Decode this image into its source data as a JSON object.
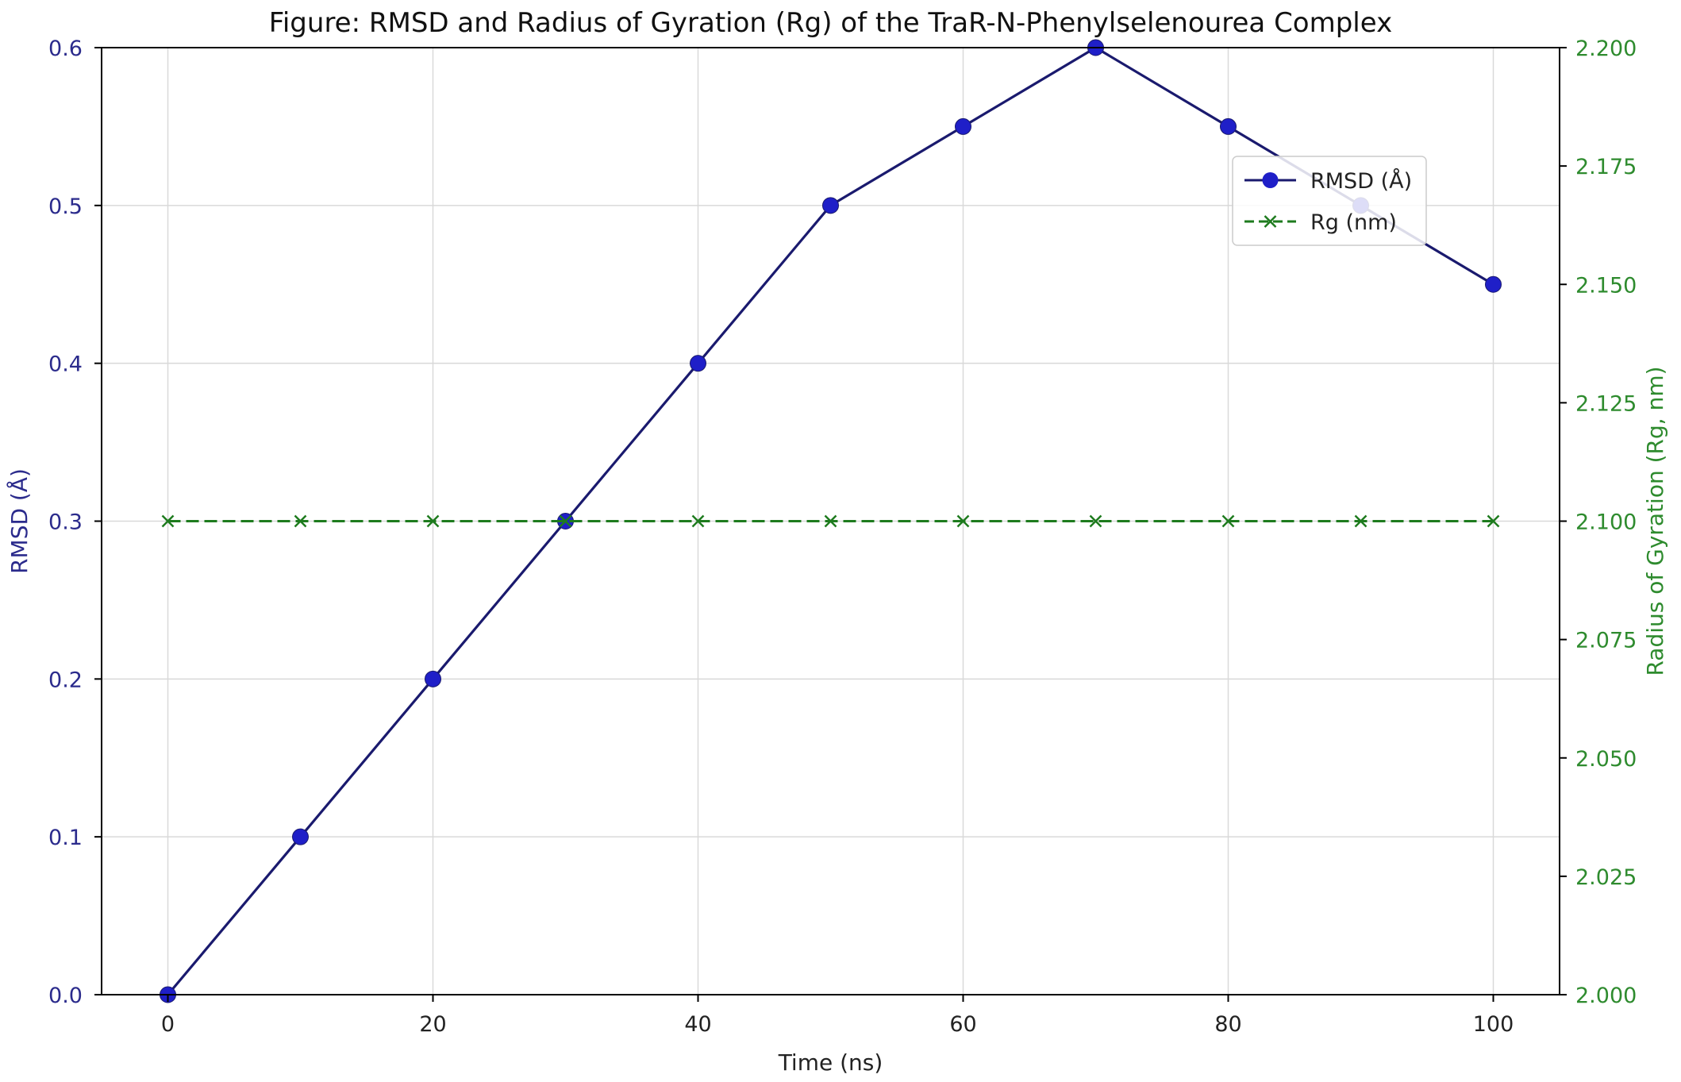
{
  "chart_data": {
    "type": "line",
    "title": "Figure: RMSD and Radius of Gyration (Rg) of the TraR-N-Phenylselenourea Complex",
    "xlabel": "Time (ns)",
    "ylabel": "RMSD (Å)",
    "ylabel_right": "Radius of Gyration (Rg, nm)",
    "xlim": [
      -5,
      105
    ],
    "ylim": [
      0.0,
      0.6
    ],
    "ylim_right": [
      2.0,
      2.2
    ],
    "x_ticks": [
      0,
      20,
      40,
      60,
      80,
      100
    ],
    "x_tick_labels": [
      "0",
      "20",
      "40",
      "60",
      "80",
      "100"
    ],
    "y_ticks": [
      0.0,
      0.1,
      0.2,
      0.3,
      0.4,
      0.5,
      0.6
    ],
    "y_tick_labels": [
      "0.0",
      "0.1",
      "0.2",
      "0.3",
      "0.4",
      "0.5",
      "0.6"
    ],
    "y_right_ticks": [
      2.0,
      2.025,
      2.05,
      2.075,
      2.1,
      2.125,
      2.15,
      2.175,
      2.2
    ],
    "y_right_tick_labels": [
      "2.000",
      "2.025",
      "2.050",
      "2.075",
      "2.100",
      "2.125",
      "2.150",
      "2.175",
      "2.200"
    ],
    "grid": true,
    "legend_position": "upper-right",
    "series": [
      {
        "name": "RMSD (Å)",
        "axis": "left",
        "marker": "circle",
        "line_style": "solid",
        "line_color": "#1a1a6e",
        "marker_color": "#1f1fc8",
        "x": [
          0,
          10,
          20,
          30,
          40,
          50,
          60,
          70,
          80,
          90,
          100
        ],
        "values": [
          0.0,
          0.1,
          0.2,
          0.3,
          0.4,
          0.5,
          0.55,
          0.6,
          0.55,
          0.5,
          0.45
        ]
      },
      {
        "name": "Rg (nm)",
        "axis": "right",
        "marker": "x",
        "line_style": "dashed",
        "line_color": "#1e7b1e",
        "marker_color": "#1e7b1e",
        "x": [
          0,
          10,
          20,
          30,
          40,
          50,
          60,
          70,
          80,
          90,
          100
        ],
        "values": [
          2.1,
          2.1,
          2.1,
          2.1,
          2.1,
          2.1,
          2.1,
          2.1,
          2.1,
          2.1,
          2.1
        ]
      }
    ],
    "colors": {
      "left_axis": "#2b2b8c",
      "right_axis": "#2e8b2e",
      "title": "#111111",
      "grid": "#d9d9d9",
      "frame": "#000000"
    }
  }
}
